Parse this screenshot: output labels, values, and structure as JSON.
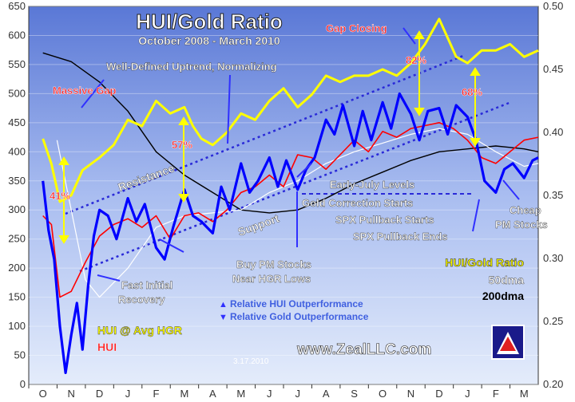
{
  "chart_data": {
    "type": "line",
    "title": "HUI/Gold Ratio",
    "subtitle": "October 2008 - March 2010",
    "x_labels": [
      "O",
      "N",
      "D",
      "J",
      "F",
      "M",
      "A",
      "M",
      "J",
      "J",
      "A",
      "S",
      "O",
      "N",
      "D",
      "J",
      "F",
      "M"
    ],
    "left_axis": {
      "min": 0,
      "max": 650,
      "ticks": [
        0,
        50,
        100,
        150,
        200,
        250,
        300,
        350,
        400,
        450,
        500,
        550,
        600,
        650
      ]
    },
    "right_axis": {
      "min": 0.2,
      "max": 0.5,
      "ticks": [
        "0.20",
        "0.25",
        "0.30",
        "0.35",
        "0.40",
        "0.45",
        "0.50"
      ]
    },
    "grid": true,
    "series": [
      {
        "name": "HUI/Gold Ratio",
        "axis": "right",
        "color": "#ffff00",
        "x": [
          0,
          0.3,
          0.6,
          1,
          1.4,
          2,
          2.5,
          3,
          3.5,
          4,
          4.5,
          5,
          5.3,
          5.6,
          6,
          6.5,
          7,
          7.5,
          8,
          8.5,
          9,
          9.5,
          10,
          10.5,
          11,
          11.5,
          12,
          12.5,
          13,
          13.5,
          14,
          14.3,
          14.6,
          15,
          15.5,
          16,
          16.5,
          17,
          17.5
        ],
        "y": [
          0.395,
          0.375,
          0.345,
          0.35,
          0.37,
          0.38,
          0.39,
          0.41,
          0.405,
          0.425,
          0.415,
          0.42,
          0.405,
          0.395,
          0.39,
          0.4,
          0.415,
          0.41,
          0.425,
          0.435,
          0.42,
          0.43,
          0.445,
          0.44,
          0.445,
          0.445,
          0.45,
          0.445,
          0.455,
          0.47,
          0.49,
          0.475,
          0.46,
          0.455,
          0.465,
          0.465,
          0.47,
          0.46,
          0.465
        ]
      },
      {
        "name": "HUI @ Avg HGR",
        "axis": "left",
        "color": "#ff0000",
        "x": [
          0,
          0.3,
          0.6,
          1,
          1.5,
          2,
          2.5,
          3,
          3.5,
          4,
          4.5,
          5,
          5.5,
          6,
          6.5,
          7,
          7.5,
          8,
          8.5,
          9,
          9.5,
          10,
          10.5,
          11,
          11.5,
          12,
          12.5,
          13,
          13.5,
          14,
          14.5,
          15,
          15.5,
          16,
          16.5,
          17,
          17.5
        ],
        "y": [
          290,
          275,
          150,
          160,
          210,
          255,
          275,
          285,
          270,
          290,
          250,
          290,
          295,
          280,
          300,
          330,
          340,
          360,
          340,
          395,
          390,
          370,
          395,
          420,
          400,
          435,
          425,
          440,
          445,
          450,
          440,
          420,
          390,
          380,
          400,
          420,
          425
        ]
      },
      {
        "name": "HUI",
        "axis": "left",
        "color": "#0000ff",
        "x": [
          0,
          0.2,
          0.4,
          0.6,
          0.8,
          1,
          1.2,
          1.4,
          1.6,
          1.8,
          2,
          2.3,
          2.6,
          3,
          3.3,
          3.6,
          4,
          4.3,
          4.6,
          5,
          5.3,
          5.6,
          6,
          6.3,
          6.6,
          7,
          7.3,
          7.6,
          8,
          8.3,
          8.6,
          9,
          9.3,
          9.6,
          10,
          10.3,
          10.6,
          11,
          11.3,
          11.6,
          12,
          12.3,
          12.6,
          13,
          13.3,
          13.6,
          14,
          14.3,
          14.6,
          15,
          15.3,
          15.6,
          16,
          16.3,
          16.6,
          17,
          17.3,
          17.5
        ],
        "y": [
          350,
          265,
          215,
          100,
          20,
          85,
          140,
          60,
          170,
          255,
          300,
          290,
          250,
          320,
          280,
          310,
          235,
          215,
          270,
          335,
          290,
          280,
          260,
          340,
          300,
          380,
          330,
          350,
          390,
          340,
          385,
          335,
          370,
          390,
          455,
          430,
          480,
          410,
          470,
          420,
          485,
          440,
          500,
          465,
          420,
          470,
          475,
          430,
          480,
          460,
          420,
          350,
          330,
          370,
          380,
          355,
          385,
          390
        ]
      },
      {
        "name": "50dma",
        "axis": "left",
        "color": "#ffffff",
        "x": [
          0.5,
          1,
          1.5,
          2,
          3,
          4,
          5,
          6,
          7,
          8,
          9,
          10,
          11,
          12,
          13,
          14,
          15,
          16,
          17,
          17.5
        ],
        "y": [
          420,
          300,
          180,
          150,
          200,
          270,
          290,
          295,
          300,
          330,
          350,
          380,
          400,
          415,
          430,
          440,
          430,
          400,
          375,
          380
        ]
      },
      {
        "name": "200dma",
        "axis": "left",
        "color": "#000000",
        "x": [
          0,
          1,
          2,
          3,
          4,
          5,
          6,
          7,
          8,
          9,
          10,
          11,
          12,
          13,
          14,
          15,
          16,
          17,
          17.5
        ],
        "y": [
          570,
          555,
          520,
          470,
          400,
          360,
          330,
          300,
          295,
          300,
          320,
          345,
          365,
          385,
          400,
          405,
          410,
          405,
          400
        ]
      }
    ],
    "annotations": {
      "massive_gap": "Massive Gap",
      "gap_closing": "Gap Closing",
      "uptrend": "Well-Defined Uptrend, Normalizing",
      "resistance": "Resistance",
      "support": "Support",
      "pct_41": "41%",
      "pct_57": "57%",
      "pct_82": "82%",
      "pct_68": "68%",
      "early_july": "Early-July Levels",
      "gold_correction": "Gold Correction Starts",
      "spx_pullback_starts": "SPX Pullback Starts",
      "spx_pullback_ends": "SPX Pullback Ends",
      "buy_pm_1": "Buy PM Stocks",
      "buy_pm_2": "Near HGR Lows",
      "fast_initial_1": "Fast Initial",
      "fast_initial_2": "Recovery",
      "cheap_pm_1": "Cheap",
      "cheap_pm_2": "PM Stocks",
      "rel_hui": "Relative HUI Outperformance",
      "rel_gold": "Relative Gold Outperformance",
      "legend_ratio": "HUI/Gold Ratio",
      "legend_50dma": "50dma",
      "legend_200dma": "200dma",
      "legend_hui_avg": "HUI @ Avg HGR",
      "legend_hui": "HUI",
      "url": "www.ZealLLC.com",
      "date": "3.17.2010"
    }
  }
}
